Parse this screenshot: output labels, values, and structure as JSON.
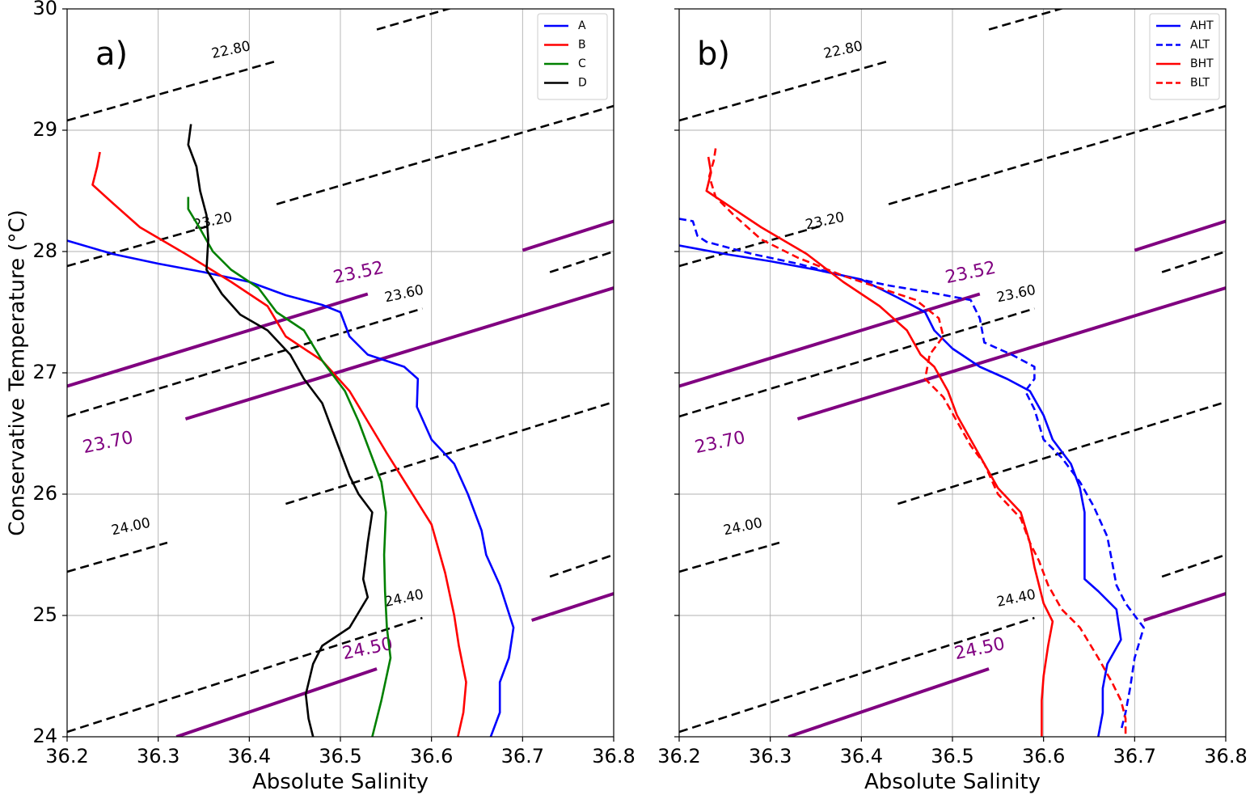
{
  "chart_data": [
    {
      "type": "line",
      "panel_label": "a)",
      "xlabel": "Absolute Salinity",
      "ylabel": "Conservative Temperature (°C)",
      "xlim": [
        36.2,
        36.8
      ],
      "ylim": [
        24,
        30
      ],
      "x_ticks": [
        "36.2",
        "36.3",
        "36.4",
        "36.5",
        "36.6",
        "36.7",
        "36.8"
      ],
      "y_ticks": [
        "24",
        "25",
        "26",
        "27",
        "28",
        "29",
        "30"
      ],
      "grid": true,
      "legend_position": "top-right",
      "series": [
        {
          "name": "A",
          "color": "#0000ff",
          "dash": "solid",
          "points": [
            [
              36.2,
              28.09
            ],
            [
              36.25,
              27.98
            ],
            [
              36.3,
              27.9
            ],
            [
              36.35,
              27.83
            ],
            [
              36.4,
              27.75
            ],
            [
              36.44,
              27.64
            ],
            [
              36.48,
              27.56
            ],
            [
              36.5,
              27.5
            ],
            [
              36.51,
              27.3
            ],
            [
              36.53,
              27.15
            ],
            [
              36.57,
              27.05
            ],
            [
              36.585,
              26.95
            ],
            [
              36.584,
              26.72
            ],
            [
              36.6,
              26.45
            ],
            [
              36.625,
              26.25
            ],
            [
              36.64,
              26.0
            ],
            [
              36.655,
              25.7
            ],
            [
              36.66,
              25.5
            ],
            [
              36.675,
              25.25
            ],
            [
              36.69,
              24.9
            ],
            [
              36.685,
              24.65
            ],
            [
              36.675,
              24.45
            ],
            [
              36.675,
              24.2
            ],
            [
              36.665,
              24.0
            ]
          ]
        },
        {
          "name": "B",
          "color": "#ff0000",
          "dash": "solid",
          "points": [
            [
              36.236,
              28.82
            ],
            [
              36.233,
              28.7
            ],
            [
              36.228,
              28.55
            ],
            [
              36.25,
              28.4
            ],
            [
              36.28,
              28.2
            ],
            [
              36.33,
              27.98
            ],
            [
              36.38,
              27.75
            ],
            [
              36.42,
              27.55
            ],
            [
              36.44,
              27.3
            ],
            [
              36.48,
              27.1
            ],
            [
              36.51,
              26.85
            ],
            [
              36.53,
              26.6
            ],
            [
              36.55,
              26.35
            ],
            [
              36.575,
              26.05
            ],
            [
              36.6,
              25.75
            ],
            [
              36.615,
              25.35
            ],
            [
              36.625,
              25.0
            ],
            [
              36.63,
              24.75
            ],
            [
              36.638,
              24.45
            ],
            [
              36.635,
              24.2
            ],
            [
              36.629,
              24.0
            ]
          ]
        },
        {
          "name": "C",
          "color": "#008000",
          "dash": "solid",
          "points": [
            [
              36.333,
              28.45
            ],
            [
              36.333,
              28.35
            ],
            [
              36.345,
              28.2
            ],
            [
              36.36,
              28.0
            ],
            [
              36.38,
              27.85
            ],
            [
              36.41,
              27.7
            ],
            [
              36.43,
              27.5
            ],
            [
              36.46,
              27.35
            ],
            [
              36.48,
              27.1
            ],
            [
              36.505,
              26.85
            ],
            [
              36.52,
              26.6
            ],
            [
              36.535,
              26.3
            ],
            [
              36.545,
              26.1
            ],
            [
              36.55,
              25.85
            ],
            [
              36.548,
              25.5
            ],
            [
              36.549,
              25.2
            ],
            [
              36.551,
              24.9
            ],
            [
              36.555,
              24.65
            ],
            [
              36.545,
              24.3
            ],
            [
              36.535,
              24.0
            ]
          ]
        },
        {
          "name": "D",
          "color": "#000000",
          "dash": "solid",
          "points": [
            [
              36.336,
              29.05
            ],
            [
              36.333,
              28.88
            ],
            [
              36.342,
              28.7
            ],
            [
              36.346,
              28.5
            ],
            [
              36.353,
              28.3
            ],
            [
              36.355,
              28.1
            ],
            [
              36.353,
              27.85
            ],
            [
              36.37,
              27.65
            ],
            [
              36.39,
              27.48
            ],
            [
              36.42,
              27.35
            ],
            [
              36.445,
              27.15
            ],
            [
              36.46,
              26.95
            ],
            [
              36.48,
              26.75
            ],
            [
              36.49,
              26.55
            ],
            [
              36.5,
              26.35
            ],
            [
              36.51,
              26.15
            ],
            [
              36.52,
              26.0
            ],
            [
              36.535,
              25.85
            ],
            [
              36.53,
              25.6
            ],
            [
              36.525,
              25.3
            ],
            [
              36.53,
              25.15
            ],
            [
              36.51,
              24.9
            ],
            [
              36.48,
              24.75
            ],
            [
              36.47,
              24.6
            ],
            [
              36.462,
              24.35
            ],
            [
              36.465,
              24.15
            ],
            [
              36.47,
              24.0
            ]
          ]
        }
      ],
      "contours": [
        {
          "label": "22.80",
          "color": "#000000",
          "dash": "dashed"
        },
        {
          "label": "23.20",
          "color": "#000000",
          "dash": "dashed"
        },
        {
          "label": "23.52",
          "color": "#800080",
          "dash": "solid"
        },
        {
          "label": "23.60",
          "color": "#000000",
          "dash": "dashed"
        },
        {
          "label": "23.70",
          "color": "#800080",
          "dash": "solid"
        },
        {
          "label": "24.00",
          "color": "#000000",
          "dash": "dashed"
        },
        {
          "label": "24.40",
          "color": "#000000",
          "dash": "dashed"
        },
        {
          "label": "24.50",
          "color": "#800080",
          "dash": "solid"
        }
      ]
    },
    {
      "type": "line",
      "panel_label": "b)",
      "xlabel": "Absolute Salinity",
      "ylabel": "",
      "xlim": [
        36.2,
        36.8
      ],
      "ylim": [
        24,
        30
      ],
      "x_ticks": [
        "36.2",
        "36.3",
        "36.4",
        "36.5",
        "36.6",
        "36.7",
        "36.8"
      ],
      "y_ticks": [],
      "grid": true,
      "legend_position": "top-right",
      "series": [
        {
          "name": "AHT",
          "color": "#0000ff",
          "dash": "solid",
          "points": [
            [
              36.2,
              28.05
            ],
            [
              36.25,
              27.98
            ],
            [
              36.3,
              27.92
            ],
            [
              36.35,
              27.85
            ],
            [
              36.4,
              27.77
            ],
            [
              36.44,
              27.62
            ],
            [
              36.47,
              27.5
            ],
            [
              36.48,
              27.35
            ],
            [
              36.5,
              27.2
            ],
            [
              36.53,
              27.05
            ],
            [
              36.56,
              26.95
            ],
            [
              36.585,
              26.85
            ],
            [
              36.6,
              26.65
            ],
            [
              36.61,
              26.45
            ],
            [
              36.63,
              26.25
            ],
            [
              36.64,
              26.05
            ],
            [
              36.645,
              25.85
            ],
            [
              36.645,
              25.6
            ],
            [
              36.645,
              25.3
            ],
            [
              36.66,
              25.2
            ],
            [
              36.68,
              25.05
            ],
            [
              36.685,
              24.8
            ],
            [
              36.67,
              24.6
            ],
            [
              36.665,
              24.4
            ],
            [
              36.665,
              24.2
            ],
            [
              36.66,
              24.0
            ]
          ]
        },
        {
          "name": "ALT",
          "color": "#0000ff",
          "dash": "dashed",
          "points": [
            [
              36.2,
              28.27
            ],
            [
              36.215,
              28.25
            ],
            [
              36.22,
              28.13
            ],
            [
              36.23,
              28.08
            ],
            [
              36.28,
              27.98
            ],
            [
              36.33,
              27.9
            ],
            [
              36.38,
              27.8
            ],
            [
              36.43,
              27.72
            ],
            [
              36.47,
              27.67
            ],
            [
              36.52,
              27.6
            ],
            [
              36.53,
              27.45
            ],
            [
              36.535,
              27.25
            ],
            [
              36.565,
              27.15
            ],
            [
              36.59,
              27.05
            ],
            [
              36.59,
              26.95
            ],
            [
              36.58,
              26.85
            ],
            [
              36.59,
              26.7
            ],
            [
              36.6,
              26.45
            ],
            [
              36.62,
              26.3
            ],
            [
              36.64,
              26.1
            ],
            [
              36.655,
              25.9
            ],
            [
              36.67,
              25.65
            ],
            [
              36.675,
              25.45
            ],
            [
              36.68,
              25.25
            ],
            [
              36.69,
              25.1
            ],
            [
              36.7,
              25.0
            ],
            [
              36.71,
              24.9
            ],
            [
              36.7,
              24.65
            ],
            [
              36.695,
              24.4
            ],
            [
              36.69,
              24.2
            ],
            [
              36.685,
              24.05
            ]
          ]
        },
        {
          "name": "BHT",
          "color": "#ff0000",
          "dash": "solid",
          "points": [
            [
              36.232,
              28.78
            ],
            [
              36.235,
              28.65
            ],
            [
              36.23,
              28.5
            ],
            [
              36.25,
              28.4
            ],
            [
              36.29,
              28.2
            ],
            [
              36.34,
              27.98
            ],
            [
              36.38,
              27.75
            ],
            [
              36.42,
              27.55
            ],
            [
              36.45,
              27.35
            ],
            [
              36.465,
              27.15
            ],
            [
              36.48,
              27.05
            ],
            [
              36.495,
              26.85
            ],
            [
              36.505,
              26.65
            ],
            [
              36.52,
              26.45
            ],
            [
              36.535,
              26.25
            ],
            [
              36.55,
              26.05
            ],
            [
              36.575,
              25.85
            ],
            [
              36.585,
              25.6
            ],
            [
              36.59,
              25.4
            ],
            [
              36.6,
              25.1
            ],
            [
              36.61,
              24.95
            ],
            [
              36.605,
              24.75
            ],
            [
              36.6,
              24.5
            ],
            [
              36.598,
              24.3
            ],
            [
              36.598,
              24.0
            ]
          ]
        },
        {
          "name": "BLT",
          "color": "#ff0000",
          "dash": "dashed",
          "points": [
            [
              36.24,
              28.85
            ],
            [
              36.238,
              28.75
            ],
            [
              36.233,
              28.62
            ],
            [
              36.24,
              28.45
            ],
            [
              36.26,
              28.3
            ],
            [
              36.29,
              28.1
            ],
            [
              36.33,
              27.95
            ],
            [
              36.38,
              27.8
            ],
            [
              36.42,
              27.7
            ],
            [
              36.46,
              27.6
            ],
            [
              36.485,
              27.45
            ],
            [
              36.49,
              27.3
            ],
            [
              36.475,
              27.15
            ],
            [
              36.47,
              26.95
            ],
            [
              36.49,
              26.8
            ],
            [
              36.505,
              26.6
            ],
            [
              36.52,
              26.4
            ],
            [
              36.535,
              26.25
            ],
            [
              36.55,
              26.0
            ],
            [
              36.575,
              25.8
            ],
            [
              36.585,
              25.6
            ],
            [
              36.595,
              25.45
            ],
            [
              36.605,
              25.25
            ],
            [
              36.62,
              25.05
            ],
            [
              36.64,
              24.9
            ],
            [
              36.66,
              24.65
            ],
            [
              36.675,
              24.45
            ],
            [
              36.685,
              24.3
            ],
            [
              36.69,
              24.15
            ],
            [
              36.69,
              24.0
            ]
          ]
        }
      ],
      "contours": [
        {
          "label": "22.80",
          "color": "#000000",
          "dash": "dashed"
        },
        {
          "label": "23.20",
          "color": "#000000",
          "dash": "dashed"
        },
        {
          "label": "23.52",
          "color": "#800080",
          "dash": "solid"
        },
        {
          "label": "23.60",
          "color": "#000000",
          "dash": "dashed"
        },
        {
          "label": "23.70",
          "color": "#800080",
          "dash": "solid"
        },
        {
          "label": "24.00",
          "color": "#000000",
          "dash": "dashed"
        },
        {
          "label": "24.40",
          "color": "#000000",
          "dash": "dashed"
        },
        {
          "label": "24.50",
          "color": "#800080",
          "dash": "solid"
        }
      ]
    }
  ]
}
